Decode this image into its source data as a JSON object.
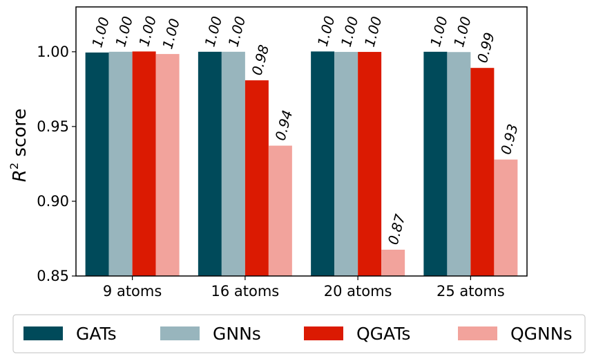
{
  "chart_data": {
    "type": "bar",
    "title": "",
    "xlabel": "",
    "ylabel_base": "R",
    "ylabel_sup": "2",
    "ylabel_rest": " score",
    "ylim": [
      0.85,
      1.03
    ],
    "yticks": [
      "0.85",
      "0.90",
      "0.95",
      "1.00"
    ],
    "yticks_values": [
      0.85,
      0.9,
      0.95,
      1.0
    ],
    "categories": [
      "9 atoms",
      "16 atoms",
      "20 atoms",
      "25 atoms"
    ],
    "series": [
      {
        "name": "GATs",
        "color": "#004a5a",
        "values": [
          0.9995,
          1.0,
          1.0002,
          1.0
        ],
        "labels": [
          "1.00",
          "1.00",
          "1.00",
          "1.00"
        ]
      },
      {
        "name": "GNNs",
        "color": "#98b5bd",
        "values": [
          1.0,
          1.0,
          0.9999,
          0.9998
        ],
        "labels": [
          "1.00",
          "1.00",
          "1.00",
          "1.00"
        ]
      },
      {
        "name": "QGATs",
        "color": "#db1a02",
        "values": [
          1.0002,
          0.9809,
          0.9999,
          0.9892
        ],
        "labels": [
          "1.00",
          "0.98",
          "1.00",
          "0.99"
        ]
      },
      {
        "name": "QGNNs",
        "color": "#f2a39c",
        "values": [
          0.9985,
          0.9372,
          0.8676,
          0.9279
        ],
        "labels": [
          "1.00",
          "0.94",
          "0.87",
          "0.93"
        ]
      }
    ],
    "legend_position": "bottom"
  }
}
